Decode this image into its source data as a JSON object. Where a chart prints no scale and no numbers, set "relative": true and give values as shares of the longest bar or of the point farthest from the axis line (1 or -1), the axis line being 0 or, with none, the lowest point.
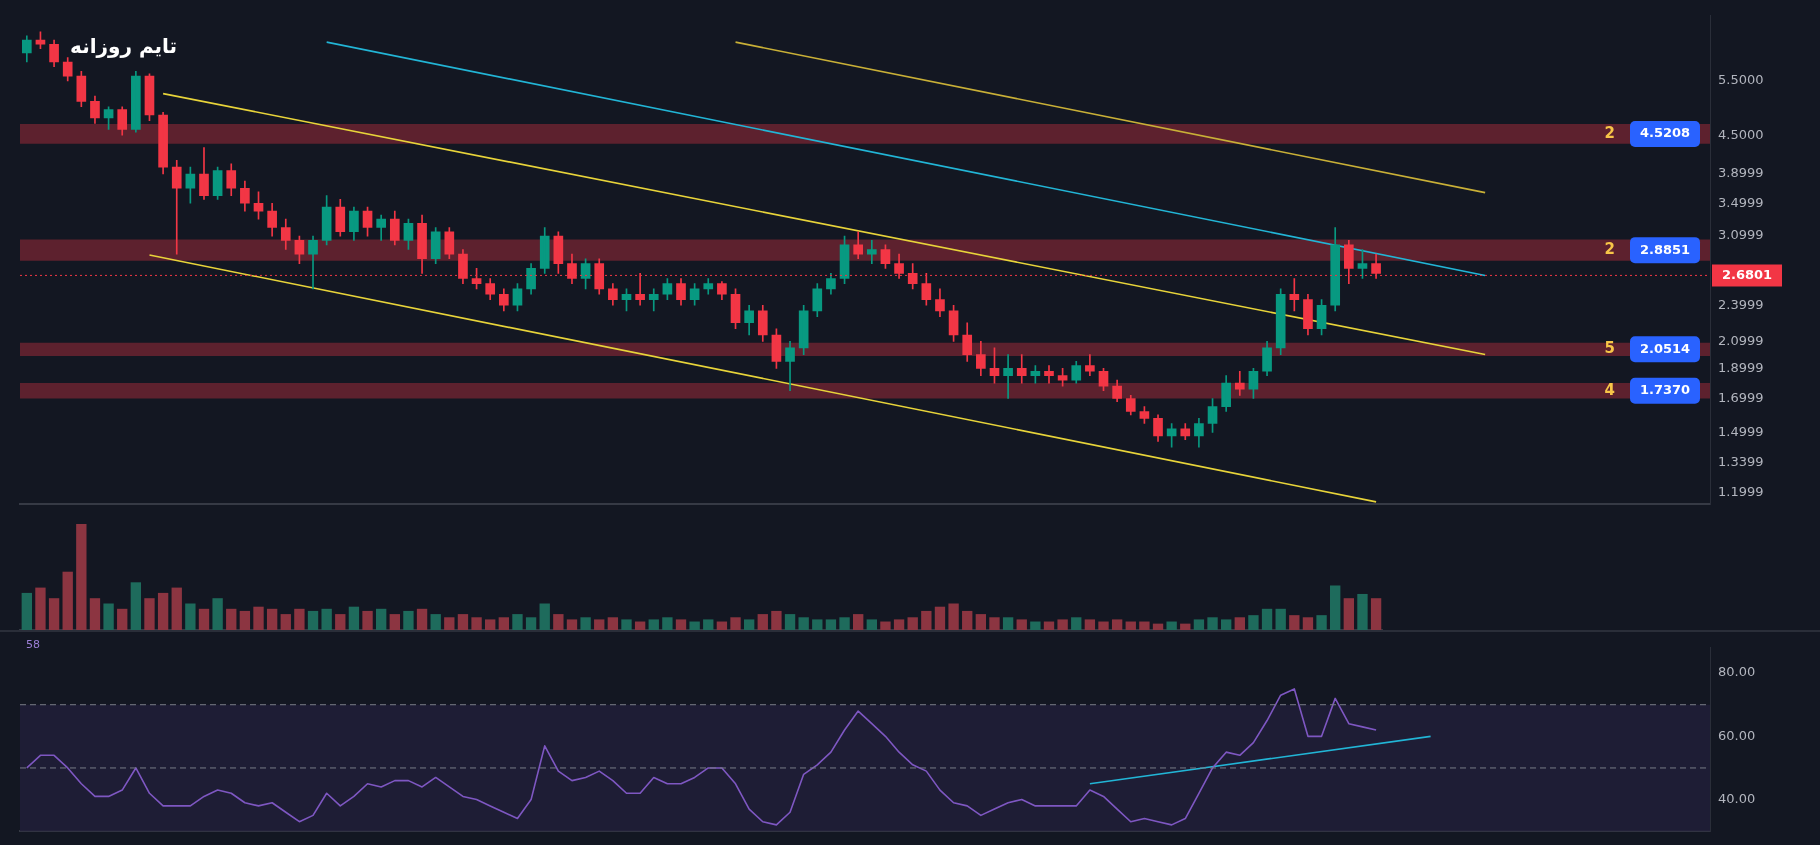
{
  "chart_data": [
    {
      "type": "candlestick",
      "title": "تایم روزانه",
      "categories": [
        null,
        null,
        null,
        null,
        null,
        null,
        null,
        null,
        null,
        null,
        null,
        null,
        null,
        null,
        null,
        null,
        null,
        null,
        null,
        null,
        null,
        null,
        null,
        null,
        null,
        null,
        null,
        null,
        null,
        null,
        null,
        null,
        null,
        null,
        null,
        null,
        null,
        null,
        null,
        null,
        null,
        null,
        null,
        null,
        null,
        null,
        null,
        null,
        null,
        null,
        null,
        null,
        null,
        null,
        null,
        null,
        null,
        null,
        null,
        null,
        null,
        null,
        null,
        null,
        null,
        null,
        null,
        null,
        null,
        null,
        null,
        null,
        null,
        null,
        null,
        null,
        null,
        null,
        null,
        null,
        null,
        null,
        null,
        null,
        null,
        null,
        null,
        null,
        null,
        null,
        null,
        null,
        null,
        null,
        null,
        null,
        null,
        null,
        null,
        null,
        null,
        null,
        null,
        null,
        null,
        null,
        null,
        null,
        null,
        null,
        null,
        null,
        null,
        null,
        null,
        null,
        null,
        null,
        null,
        null,
        null,
        null,
        null,
        null
      ],
      "ohlc": [
        [
          6.1,
          6.5,
          5.9,
          6.4
        ],
        [
          6.4,
          6.6,
          6.2,
          6.3
        ],
        [
          6.3,
          6.4,
          5.8,
          5.9
        ],
        [
          5.9,
          6.0,
          5.5,
          5.6
        ],
        [
          5.6,
          5.7,
          5.0,
          5.1
        ],
        [
          5.1,
          5.2,
          4.7,
          4.8
        ],
        [
          4.8,
          5.0,
          4.6,
          4.95
        ],
        [
          4.95,
          5.0,
          4.5,
          4.6
        ],
        [
          4.6,
          5.7,
          4.55,
          5.6
        ],
        [
          5.6,
          5.65,
          4.75,
          4.85
        ],
        [
          4.85,
          4.9,
          3.9,
          4.0
        ],
        [
          4.0,
          4.1,
          2.9,
          3.7
        ],
        [
          3.7,
          4.0,
          3.5,
          3.9
        ],
        [
          3.9,
          4.3,
          3.55,
          3.6
        ],
        [
          3.6,
          4.0,
          3.55,
          3.95
        ],
        [
          3.95,
          4.05,
          3.6,
          3.7
        ],
        [
          3.7,
          3.8,
          3.4,
          3.5
        ],
        [
          3.5,
          3.65,
          3.3,
          3.4
        ],
        [
          3.4,
          3.5,
          3.1,
          3.2
        ],
        [
          3.2,
          3.3,
          2.95,
          3.05
        ],
        [
          3.05,
          3.1,
          2.8,
          2.9
        ],
        [
          2.9,
          3.1,
          2.55,
          3.05
        ],
        [
          3.05,
          3.6,
          3.0,
          3.45
        ],
        [
          3.45,
          3.55,
          3.1,
          3.15
        ],
        [
          3.15,
          3.45,
          3.05,
          3.4
        ],
        [
          3.4,
          3.45,
          3.1,
          3.2
        ],
        [
          3.2,
          3.35,
          3.05,
          3.3
        ],
        [
          3.3,
          3.4,
          3.0,
          3.05
        ],
        [
          3.05,
          3.3,
          2.95,
          3.25
        ],
        [
          3.25,
          3.35,
          2.7,
          2.85
        ],
        [
          2.85,
          3.2,
          2.8,
          3.15
        ],
        [
          3.15,
          3.2,
          2.85,
          2.9
        ],
        [
          2.9,
          2.95,
          2.6,
          2.65
        ],
        [
          2.65,
          2.75,
          2.55,
          2.6
        ],
        [
          2.6,
          2.65,
          2.45,
          2.5
        ],
        [
          2.5,
          2.55,
          2.35,
          2.4
        ],
        [
          2.4,
          2.6,
          2.35,
          2.55
        ],
        [
          2.55,
          2.8,
          2.5,
          2.75
        ],
        [
          2.75,
          3.2,
          2.7,
          3.1
        ],
        [
          3.1,
          3.15,
          2.7,
          2.8
        ],
        [
          2.8,
          2.9,
          2.6,
          2.65
        ],
        [
          2.65,
          2.85,
          2.55,
          2.8
        ],
        [
          2.8,
          2.85,
          2.5,
          2.55
        ],
        [
          2.55,
          2.6,
          2.4,
          2.45
        ],
        [
          2.45,
          2.55,
          2.35,
          2.5
        ],
        [
          2.5,
          2.7,
          2.4,
          2.45
        ],
        [
          2.45,
          2.55,
          2.35,
          2.5
        ],
        [
          2.5,
          2.65,
          2.45,
          2.6
        ],
        [
          2.6,
          2.65,
          2.4,
          2.45
        ],
        [
          2.45,
          2.6,
          2.4,
          2.55
        ],
        [
          2.55,
          2.65,
          2.5,
          2.6
        ],
        [
          2.6,
          2.62,
          2.45,
          2.5
        ],
        [
          2.5,
          2.55,
          2.2,
          2.25
        ],
        [
          2.25,
          2.4,
          2.15,
          2.35
        ],
        [
          2.35,
          2.4,
          2.1,
          2.15
        ],
        [
          2.15,
          2.2,
          1.9,
          1.95
        ],
        [
          1.95,
          2.1,
          1.75,
          2.05
        ],
        [
          2.05,
          2.4,
          2.0,
          2.35
        ],
        [
          2.35,
          2.6,
          2.3,
          2.55
        ],
        [
          2.55,
          2.7,
          2.5,
          2.65
        ],
        [
          2.65,
          3.1,
          2.6,
          3.0
        ],
        [
          3.0,
          3.15,
          2.85,
          2.9
        ],
        [
          2.9,
          3.05,
          2.8,
          2.95
        ],
        [
          2.95,
          3.0,
          2.75,
          2.8
        ],
        [
          2.8,
          2.9,
          2.65,
          2.7
        ],
        [
          2.7,
          2.8,
          2.55,
          2.6
        ],
        [
          2.6,
          2.7,
          2.4,
          2.45
        ],
        [
          2.45,
          2.55,
          2.3,
          2.35
        ],
        [
          2.35,
          2.4,
          2.1,
          2.15
        ],
        [
          2.15,
          2.25,
          1.95,
          2.0
        ],
        [
          2.0,
          2.1,
          1.85,
          1.9
        ],
        [
          1.9,
          2.05,
          1.8,
          1.85
        ],
        [
          1.85,
          2.0,
          1.7,
          1.9
        ],
        [
          1.9,
          2.0,
          1.8,
          1.85
        ],
        [
          1.85,
          1.92,
          1.8,
          1.88
        ],
        [
          1.88,
          1.92,
          1.8,
          1.85
        ],
        [
          1.85,
          1.9,
          1.78,
          1.82
        ],
        [
          1.82,
          1.95,
          1.8,
          1.92
        ],
        [
          1.92,
          2.0,
          1.85,
          1.88
        ],
        [
          1.88,
          1.9,
          1.75,
          1.78
        ],
        [
          1.78,
          1.82,
          1.68,
          1.7
        ],
        [
          1.7,
          1.72,
          1.6,
          1.62
        ],
        [
          1.62,
          1.65,
          1.55,
          1.58
        ],
        [
          1.58,
          1.6,
          1.45,
          1.48
        ],
        [
          1.48,
          1.55,
          1.42,
          1.52
        ],
        [
          1.52,
          1.55,
          1.46,
          1.48
        ],
        [
          1.48,
          1.58,
          1.42,
          1.55
        ],
        [
          1.55,
          1.7,
          1.5,
          1.65
        ],
        [
          1.65,
          1.85,
          1.62,
          1.8
        ],
        [
          1.8,
          1.88,
          1.72,
          1.76
        ],
        [
          1.76,
          1.9,
          1.7,
          1.88
        ],
        [
          1.88,
          2.1,
          1.85,
          2.05
        ],
        [
          2.05,
          2.55,
          2.0,
          2.5
        ],
        [
          2.5,
          2.65,
          2.35,
          2.45
        ],
        [
          2.45,
          2.5,
          2.15,
          2.2
        ],
        [
          2.2,
          2.45,
          2.15,
          2.4
        ],
        [
          2.4,
          3.2,
          2.35,
          3.0
        ],
        [
          3.0,
          3.05,
          2.6,
          2.75
        ],
        [
          2.75,
          2.95,
          2.65,
          2.8
        ],
        [
          2.8,
          2.9,
          2.65,
          2.7
        ],
        null,
        null,
        null,
        null,
        null,
        null,
        null,
        null,
        null,
        null,
        null,
        null,
        null,
        null,
        null,
        null,
        null,
        null,
        null,
        null,
        null,
        null,
        null,
        null
      ],
      "colors": [
        "#089981",
        "#f23645",
        "#f23645",
        "#f23645",
        "#f23645",
        "#f23645",
        "#089981",
        "#f23645",
        "#089981",
        "#f23645",
        "#f23645",
        "#f23645",
        "#089981",
        "#f23645",
        "#089981",
        "#f23645",
        "#f23645",
        "#f23645",
        "#f23645",
        "#f23645",
        "#f23645",
        "#089981",
        "#089981",
        "#f23645",
        "#089981",
        "#f23645",
        "#089981",
        "#f23645",
        "#089981",
        "#f23645",
        "#089981",
        "#f23645",
        "#f23645",
        "#f23645",
        "#f23645",
        "#f23645",
        "#089981",
        "#089981",
        "#089981",
        "#f23645",
        "#f23645",
        "#089981",
        "#f23645",
        "#f23645",
        "#089981",
        "#f23645",
        "#089981",
        "#089981",
        "#f23645",
        "#089981",
        "#089981",
        "#f23645",
        "#f23645",
        "#089981",
        "#f23645",
        "#f23645",
        "#089981",
        "#089981",
        "#089981",
        "#089981",
        "#089981",
        "#f23645",
        "#089981",
        "#f23645",
        "#f23645",
        "#f23645",
        "#f23645",
        "#f23645",
        "#f23645",
        "#f23645",
        "#f23645",
        "#f23645",
        "#089981",
        "#f23645",
        "#089981",
        "#f23645",
        "#f23645",
        "#089981",
        "#f23645",
        "#f23645",
        "#f23645",
        "#f23645",
        "#f23645",
        "#f23645",
        "#089981",
        "#f23645",
        "#089981",
        "#089981",
        "#089981",
        "#f23645",
        "#089981",
        "#089981",
        "#089981",
        "#f23645",
        "#f23645",
        "#089981",
        "#089981",
        "#f23645",
        "#089981",
        "#f23645",
        null,
        null,
        null,
        null,
        null,
        null,
        null,
        null,
        null,
        null,
        null,
        null,
        null,
        null,
        null,
        null,
        null,
        null,
        null,
        null,
        null,
        null,
        null,
        null
      ],
      "series": [
        {
          "type": "line",
          "color": "#22b5d6",
          "values": [
            null,
            null,
            null,
            null,
            null,
            null,
            null,
            null,
            null,
            null,
            null,
            null,
            null,
            null,
            null,
            null,
            null,
            null,
            null,
            null,
            null,
            null,
            6.35,
            null,
            null,
            null,
            null,
            null,
            null,
            null,
            null,
            null,
            null,
            null,
            null,
            null,
            null,
            null,
            null,
            null,
            null,
            null,
            null,
            null,
            null,
            null,
            null,
            null,
            null,
            null,
            null,
            null,
            null,
            null,
            null,
            null,
            null,
            null,
            null,
            null,
            null,
            null,
            null,
            null,
            null,
            null,
            null,
            null,
            null,
            null,
            null,
            null,
            null,
            null,
            null,
            null,
            null,
            null,
            null,
            null,
            null,
            null,
            null,
            null,
            null,
            null,
            null,
            null,
            null,
            null,
            null,
            null,
            null,
            null,
            null,
            null,
            null,
            null,
            null,
            null,
            null,
            null,
            null,
            null,
            null,
            null,
            null,
            2.68,
            null,
            null,
            null,
            null,
            null,
            null,
            null,
            null,
            null,
            null,
            null,
            null,
            null,
            null,
            null,
            null
          ]
        },
        {
          "type": "line",
          "color": "#c9b037",
          "values": [
            null,
            null,
            null,
            null,
            null,
            null,
            null,
            null,
            null,
            null,
            null,
            null,
            null,
            null,
            null,
            null,
            null,
            null,
            null,
            null,
            null,
            null,
            null,
            null,
            null,
            null,
            null,
            null,
            null,
            null,
            null,
            null,
            null,
            null,
            null,
            null,
            null,
            null,
            null,
            null,
            null,
            null,
            null,
            null,
            null,
            null,
            null,
            null,
            null,
            null,
            null,
            null,
            6.35,
            null,
            null,
            null,
            null,
            null,
            null,
            null,
            null,
            null,
            null,
            null,
            null,
            null,
            null,
            null,
            null,
            null,
            null,
            null,
            null,
            null,
            null,
            null,
            null,
            null,
            null,
            null,
            null,
            null,
            null,
            null,
            null,
            null,
            null,
            null,
            null,
            null,
            null,
            null,
            null,
            null,
            null,
            null,
            null,
            null,
            null,
            null,
            null,
            null,
            null,
            null,
            null,
            null,
            null,
            3.64,
            null,
            null,
            null,
            null,
            null,
            null,
            null,
            null,
            null,
            null,
            null,
            null,
            null,
            null,
            null,
            null
          ]
        },
        {
          "type": "line",
          "color": "#e8d43a",
          "values": [
            null,
            null,
            null,
            null,
            null,
            null,
            null,
            null,
            null,
            null,
            5.25,
            null,
            null,
            null,
            null,
            null,
            null,
            null,
            null,
            null,
            null,
            null,
            null,
            null,
            null,
            null,
            null,
            null,
            null,
            null,
            null,
            null,
            null,
            null,
            null,
            null,
            null,
            null,
            null,
            null,
            null,
            null,
            null,
            null,
            null,
            null,
            null,
            null,
            null,
            null,
            null,
            null,
            null,
            null,
            null,
            null,
            null,
            null,
            null,
            null,
            null,
            null,
            null,
            null,
            null,
            null,
            null,
            null,
            null,
            null,
            null,
            null,
            null,
            null,
            null,
            null,
            null,
            null,
            null,
            null,
            null,
            null,
            null,
            null,
            null,
            null,
            null,
            null,
            null,
            null,
            null,
            null,
            null,
            null,
            null,
            null,
            null,
            null,
            null,
            null,
            null,
            null,
            null,
            null,
            null,
            null,
            null,
            2.0,
            null,
            null,
            null,
            null,
            null,
            null,
            null,
            null,
            null,
            null,
            null,
            null,
            null,
            null,
            null,
            null
          ]
        },
        {
          "type": "line",
          "color": "#e8d43a",
          "values": [
            null,
            null,
            null,
            null,
            null,
            null,
            null,
            null,
            null,
            2.89,
            null,
            null,
            null,
            null,
            null,
            null,
            null,
            null,
            null,
            null,
            null,
            null,
            null,
            null,
            null,
            null,
            null,
            null,
            null,
            null,
            null,
            null,
            null,
            null,
            null,
            null,
            null,
            null,
            null,
            null,
            null,
            null,
            null,
            null,
            null,
            null,
            null,
            null,
            null,
            null,
            null,
            null,
            null,
            null,
            null,
            null,
            null,
            null,
            null,
            null,
            null,
            null,
            null,
            null,
            null,
            null,
            null,
            null,
            null,
            null,
            null,
            null,
            null,
            null,
            null,
            null,
            null,
            null,
            null,
            null,
            null,
            null,
            null,
            null,
            null,
            null,
            null,
            null,
            null,
            null,
            null,
            null,
            null,
            null,
            null,
            null,
            null,
            null,
            null,
            1.16,
            null,
            null,
            null,
            null,
            null,
            null,
            null,
            null,
            null,
            null,
            null,
            null,
            null,
            null,
            null,
            null,
            null,
            null,
            null,
            null,
            null,
            null,
            null,
            null
          ]
        }
      ],
      "log": true,
      "ylim": [
        1.15,
        7.0
      ],
      "yticks": [
        {
          "value": 5.5,
          "label": "5.5000"
        },
        {
          "value": 4.5,
          "label": "4.5000"
        },
        3.8999,
        3.4999,
        3.0999,
        2.3999,
        2.0999,
        1.8999,
        1.6999,
        1.4999,
        1.3399,
        1.1999
      ],
      "tick_labels": "y",
      "ref_lines": [
        {
          "axis": "y",
          "value": 2.6801,
          "label": "2.6801",
          "color": "#f23645",
          "line_style": "dotted"
        }
      ],
      "bands": [
        {
          "axis": "y",
          "from": 4.36,
          "to": 4.69,
          "label": "4.5208",
          "color": "#6b2330"
        },
        {
          "axis": "y",
          "from": 2.83,
          "to": 3.06,
          "label": "2.8851",
          "color": "#6b2330"
        },
        {
          "axis": "y",
          "from": 1.99,
          "to": 2.09,
          "label": "2.0514",
          "color": "#6b2330"
        },
        {
          "axis": "y",
          "from": 1.7,
          "to": 1.8,
          "label": "1.7370",
          "color": "#6b2330"
        }
      ],
      "annotations": [
        "2",
        "2",
        "5",
        "4"
      ]
    },
    {
      "type": "bar",
      "relative": true,
      "tick_labels": false,
      "categories": [
        null,
        null,
        null,
        null,
        null,
        null,
        null,
        null,
        null,
        null,
        null,
        null,
        null,
        null,
        null,
        null,
        null,
        null,
        null,
        null,
        null,
        null,
        null,
        null,
        null,
        null,
        null,
        null,
        null,
        null,
        null,
        null,
        null,
        null,
        null,
        null,
        null,
        null,
        null,
        null,
        null,
        null,
        null,
        null,
        null,
        null,
        null,
        null,
        null,
        null,
        null,
        null,
        null,
        null,
        null,
        null,
        null,
        null,
        null,
        null,
        null,
        null,
        null,
        null,
        null,
        null,
        null,
        null,
        null,
        null,
        null,
        null,
        null,
        null,
        null,
        null,
        null,
        null,
        null,
        null,
        null,
        null,
        null,
        null,
        null,
        null,
        null,
        null,
        null,
        null,
        null,
        null,
        null,
        null,
        null,
        null,
        null,
        null,
        null,
        null
      ],
      "values": [
        0.35,
        0.4,
        0.3,
        0.55,
        1.0,
        0.3,
        0.25,
        0.2,
        0.45,
        0.3,
        0.35,
        0.4,
        0.25,
        0.2,
        0.3,
        0.2,
        0.18,
        0.22,
        0.2,
        0.15,
        0.2,
        0.18,
        0.2,
        0.15,
        0.22,
        0.18,
        0.2,
        0.15,
        0.18,
        0.2,
        0.15,
        0.12,
        0.15,
        0.12,
        0.1,
        0.12,
        0.15,
        0.12,
        0.25,
        0.15,
        0.1,
        0.12,
        0.1,
        0.12,
        0.1,
        0.08,
        0.1,
        0.12,
        0.1,
        0.08,
        0.1,
        0.08,
        0.12,
        0.1,
        0.15,
        0.18,
        0.15,
        0.12,
        0.1,
        0.1,
        0.12,
        0.15,
        0.1,
        0.08,
        0.1,
        0.12,
        0.18,
        0.22,
        0.25,
        0.18,
        0.15,
        0.12,
        0.12,
        0.1,
        0.08,
        0.08,
        0.1,
        0.12,
        0.1,
        0.08,
        0.1,
        0.08,
        0.08,
        0.06,
        0.08,
        0.06,
        0.1,
        0.12,
        0.1,
        0.12,
        0.14,
        0.2,
        0.2,
        0.14,
        0.12,
        0.14,
        0.42,
        0.3,
        0.34,
        0.3
      ],
      "colors": [
        "#1e6b5c",
        "#8c3541",
        "#8c3541",
        "#8c3541",
        "#8c3541",
        "#8c3541",
        "#1e6b5c",
        "#8c3541",
        "#1e6b5c",
        "#8c3541",
        "#8c3541",
        "#8c3541",
        "#1e6b5c",
        "#8c3541",
        "#1e6b5c",
        "#8c3541",
        "#8c3541",
        "#8c3541",
        "#8c3541",
        "#8c3541",
        "#8c3541",
        "#1e6b5c",
        "#1e6b5c",
        "#8c3541",
        "#1e6b5c",
        "#8c3541",
        "#1e6b5c",
        "#8c3541",
        "#1e6b5c",
        "#8c3541",
        "#1e6b5c",
        "#8c3541",
        "#8c3541",
        "#8c3541",
        "#8c3541",
        "#8c3541",
        "#1e6b5c",
        "#1e6b5c",
        "#1e6b5c",
        "#8c3541",
        "#8c3541",
        "#1e6b5c",
        "#8c3541",
        "#8c3541",
        "#1e6b5c",
        "#8c3541",
        "#1e6b5c",
        "#1e6b5c",
        "#8c3541",
        "#1e6b5c",
        "#1e6b5c",
        "#8c3541",
        "#8c3541",
        "#1e6b5c",
        "#8c3541",
        "#8c3541",
        "#1e6b5c",
        "#1e6b5c",
        "#1e6b5c",
        "#1e6b5c",
        "#1e6b5c",
        "#8c3541",
        "#1e6b5c",
        "#8c3541",
        "#8c3541",
        "#8c3541",
        "#8c3541",
        "#8c3541",
        "#8c3541",
        "#8c3541",
        "#8c3541",
        "#8c3541",
        "#1e6b5c",
        "#8c3541",
        "#1e6b5c",
        "#8c3541",
        "#8c3541",
        "#1e6b5c",
        "#8c3541",
        "#8c3541",
        "#8c3541",
        "#8c3541",
        "#8c3541",
        "#8c3541",
        "#1e6b5c",
        "#8c3541",
        "#1e6b5c",
        "#1e6b5c",
        "#1e6b5c",
        "#8c3541",
        "#1e6b5c",
        "#1e6b5c",
        "#1e6b5c",
        "#8c3541",
        "#8c3541",
        "#1e6b5c",
        "#1e6b5c",
        "#8c3541",
        "#1e6b5c",
        "#8c3541"
      ]
    },
    {
      "type": "line",
      "tick_labels": "y",
      "categories": [
        null,
        null,
        null,
        null,
        null,
        null,
        null,
        null,
        null,
        null,
        null,
        null,
        null,
        null,
        null,
        null,
        null,
        null,
        null,
        null,
        null,
        null,
        null,
        null,
        null,
        null,
        null,
        null,
        null,
        null,
        null,
        null,
        null,
        null,
        null,
        null,
        null,
        null,
        null,
        null,
        null,
        null,
        null,
        null,
        null,
        null,
        null,
        null,
        null,
        null,
        null,
        null,
        null,
        null,
        null,
        null,
        null,
        null,
        null,
        null,
        null,
        null,
        null,
        null,
        null,
        null,
        null,
        null,
        null,
        null,
        null,
        null,
        null,
        null,
        null,
        null,
        null,
        null,
        null,
        null,
        null,
        null,
        null,
        null,
        null,
        null,
        null,
        null,
        null,
        null,
        null,
        null,
        null,
        null,
        null,
        null,
        null,
        null,
        null,
        null,
        null,
        null,
        null,
        null,
        null,
        null,
        null,
        null,
        null,
        null,
        null,
        null,
        null,
        null,
        null,
        null,
        null,
        null,
        null,
        null,
        null,
        null,
        null,
        null
      ],
      "series": [
        {
          "color": "#7e57c2",
          "values": [
            50,
            54,
            54,
            50,
            45,
            41,
            41,
            43,
            50,
            42,
            38,
            38,
            38,
            41,
            43,
            42,
            39,
            38,
            39,
            36,
            33,
            35,
            42,
            38,
            41,
            45,
            44,
            46,
            46,
            44,
            47,
            44,
            41,
            40,
            38,
            36,
            34,
            40,
            57,
            49,
            46,
            47,
            49,
            46,
            42,
            42,
            47,
            45,
            45,
            47,
            50,
            50,
            45,
            37,
            33,
            32,
            36,
            48,
            51,
            55,
            62,
            68,
            64,
            60,
            55,
            51,
            49,
            43,
            39,
            38,
            35,
            37,
            39,
            40,
            38,
            38,
            38,
            38,
            43,
            41,
            37,
            33,
            34,
            33,
            32,
            34,
            42,
            50,
            55,
            54,
            58,
            65,
            73,
            75,
            60,
            60,
            72,
            64,
            63,
            62,
            null,
            null,
            null,
            null,
            null,
            null,
            null,
            null,
            null,
            null,
            null,
            null,
            null,
            null,
            null,
            null,
            null,
            null,
            null,
            null,
            null,
            null,
            null,
            null
          ]
        },
        {
          "color": "#22b5d6",
          "values": [
            null,
            null,
            null,
            null,
            null,
            null,
            null,
            null,
            null,
            null,
            null,
            null,
            null,
            null,
            null,
            null,
            null,
            null,
            null,
            null,
            null,
            null,
            null,
            null,
            null,
            null,
            null,
            null,
            null,
            null,
            null,
            null,
            null,
            null,
            null,
            null,
            null,
            null,
            null,
            null,
            null,
            null,
            null,
            null,
            null,
            null,
            null,
            null,
            null,
            null,
            null,
            null,
            null,
            null,
            null,
            null,
            null,
            null,
            null,
            null,
            null,
            null,
            null,
            null,
            null,
            null,
            null,
            null,
            null,
            null,
            null,
            null,
            null,
            null,
            null,
            null,
            null,
            null,
            45,
            null,
            null,
            null,
            null,
            null,
            null,
            null,
            null,
            null,
            null,
            null,
            null,
            null,
            null,
            null,
            null,
            null,
            null,
            null,
            null,
            null,
            null,
            null,
            null,
            60,
            null,
            null,
            null,
            null,
            null,
            null,
            null,
            null,
            null,
            null,
            null,
            null,
            null,
            null,
            null,
            null,
            null,
            null,
            null,
            null
          ]
        }
      ],
      "ylim": [
        30,
        88
      ],
      "yticks": [
        {
          "value": 40,
          "label": "40.00"
        },
        {
          "value": 60,
          "label": "60.00"
        },
        {
          "value": 80,
          "label": "80.00"
        }
      ],
      "ref_lines": [
        {
          "axis": "y",
          "value": 70,
          "color": "#787b86",
          "line_style": "dashed"
        },
        {
          "axis": "y",
          "value": 50,
          "color": "#787b86",
          "line_style": "dashed"
        }
      ],
      "bands": [
        {
          "axis": "y",
          "from": 30,
          "to": 70,
          "color": "#211f38"
        }
      ],
      "annotations": [
        "58"
      ]
    }
  ]
}
